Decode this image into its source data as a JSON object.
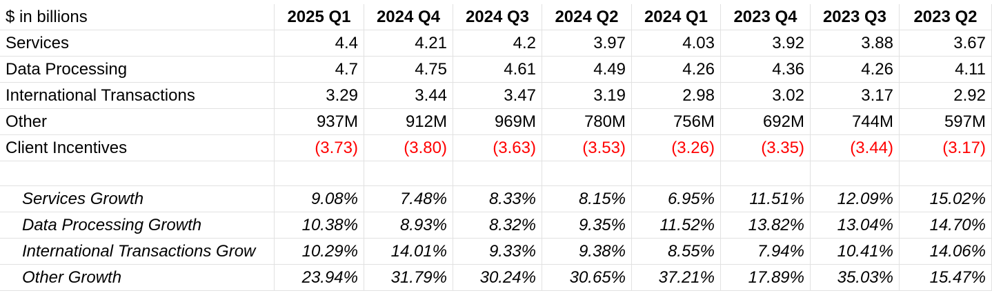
{
  "header": {
    "label": "$ in billions",
    "quarters": [
      "2025 Q1",
      "2024 Q4",
      "2024 Q3",
      "2024 Q2",
      "2024 Q1",
      "2023 Q4",
      "2023 Q3",
      "2023 Q2"
    ]
  },
  "rows": [
    {
      "label": "Services",
      "values": [
        "4.4",
        "4.21",
        "4.2",
        "3.97",
        "4.03",
        "3.92",
        "3.88",
        "3.67"
      ]
    },
    {
      "label": "Data Processing",
      "values": [
        "4.7",
        "4.75",
        "4.61",
        "4.49",
        "4.26",
        "4.36",
        "4.26",
        "4.11"
      ]
    },
    {
      "label": "International Transactions",
      "values": [
        "3.29",
        "3.44",
        "3.47",
        "3.19",
        "2.98",
        "3.02",
        "3.17",
        "2.92"
      ]
    },
    {
      "label": "Other",
      "values": [
        "937M",
        "912M",
        "969M",
        "780M",
        "756M",
        "692M",
        "744M",
        "597M"
      ]
    },
    {
      "label": "Client Incentives",
      "values": [
        "(3.73)",
        "(3.80)",
        "(3.63)",
        "(3.53)",
        "(3.26)",
        "(3.35)",
        "(3.44)",
        "(3.17)"
      ]
    }
  ],
  "growth": [
    {
      "label": "Services Growth",
      "values": [
        "9.08%",
        "7.48%",
        "8.33%",
        "8.15%",
        "6.95%",
        "11.51%",
        "12.09%",
        "15.02%"
      ]
    },
    {
      "label": "Data Processing Growth",
      "values": [
        "10.38%",
        "8.93%",
        "8.32%",
        "9.35%",
        "11.52%",
        "13.82%",
        "13.04%",
        "14.70%"
      ]
    },
    {
      "label": "International Transactions Grow",
      "values": [
        "10.29%",
        "14.01%",
        "9.33%",
        "9.38%",
        "8.55%",
        "7.94%",
        "10.41%",
        "14.06%"
      ]
    },
    {
      "label": "Other Growth",
      "values": [
        "23.94%",
        "31.79%",
        "30.24%",
        "30.65%",
        "37.21%",
        "17.89%",
        "35.03%",
        "15.47%"
      ]
    }
  ],
  "colors": {
    "negative": "#ff0000",
    "gridline": "#e1e1e1"
  }
}
